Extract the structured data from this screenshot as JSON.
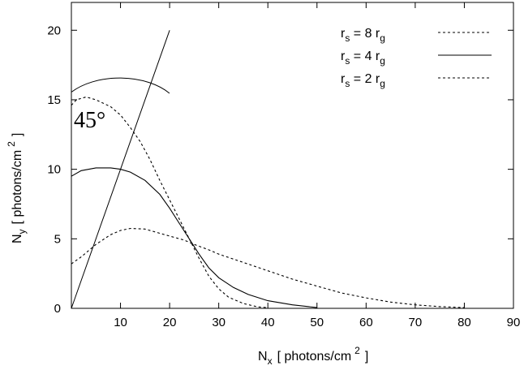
{
  "chart_data": {
    "type": "line",
    "xlabel": "N",
    "xlabel_sub": "x",
    "xlabel_unit": "[ photons/cm",
    "xlabel_sup": "2",
    "xlabel_close": "]",
    "ylabel": "N",
    "ylabel_sub": "y",
    "ylabel_unit": "[ photons/cm",
    "ylabel_sup": "2",
    "ylabel_close": "]",
    "xlim": [
      0,
      90
    ],
    "ylim": [
      0,
      22
    ],
    "xticks": [
      10,
      20,
      30,
      40,
      50,
      60,
      70,
      80,
      90
    ],
    "yticks": [
      0,
      5,
      10,
      15,
      20
    ],
    "grid": false,
    "legend_position": "top-right",
    "annotation": {
      "text": "45°",
      "line_from": [
        0,
        0
      ],
      "line_to": [
        20,
        20
      ],
      "arc_center": [
        7.5,
        15.3
      ],
      "arc_radius_x": 12.5
    },
    "series": [
      {
        "name": "r",
        "name_sub": "s",
        "name_mid": " = 8 r",
        "name_sub2": "g",
        "style": "dashed",
        "x": [
          0,
          2,
          5,
          8,
          10,
          12,
          15,
          18,
          20,
          23,
          25,
          28,
          30,
          35,
          40,
          45,
          50,
          55,
          60,
          65,
          70,
          75,
          80
        ],
        "y": [
          3.2,
          3.7,
          4.6,
          5.3,
          5.6,
          5.75,
          5.7,
          5.4,
          5.2,
          4.9,
          4.6,
          4.2,
          3.9,
          3.3,
          2.7,
          2.1,
          1.6,
          1.1,
          0.75,
          0.45,
          0.25,
          0.12,
          0.05
        ]
      },
      {
        "name": "r",
        "name_sub": "s",
        "name_mid": " = 4 r",
        "name_sub2": "g",
        "style": "solid",
        "x": [
          0,
          2,
          5,
          8,
          10,
          12,
          15,
          18,
          20,
          22,
          24,
          26,
          28,
          30,
          33,
          36,
          40,
          45,
          50
        ],
        "y": [
          9.5,
          9.9,
          10.1,
          10.1,
          10.0,
          9.8,
          9.2,
          8.2,
          7.2,
          6.1,
          5.0,
          3.9,
          2.9,
          2.2,
          1.5,
          1.0,
          0.55,
          0.25,
          0.05
        ]
      },
      {
        "name": "r",
        "name_sub": "s",
        "name_mid": " = 2 r",
        "name_sub2": "g",
        "style": "dashed",
        "x": [
          0,
          1,
          3,
          5,
          8,
          10,
          12,
          14,
          16,
          18,
          20,
          22,
          24,
          26,
          28,
          30,
          32,
          35,
          38,
          40
        ],
        "y": [
          14.6,
          15.0,
          15.2,
          15.0,
          14.5,
          13.9,
          13.0,
          12.0,
          10.7,
          9.2,
          7.8,
          6.4,
          5.0,
          3.6,
          2.3,
          1.4,
          0.8,
          0.35,
          0.1,
          0.05
        ]
      }
    ]
  }
}
